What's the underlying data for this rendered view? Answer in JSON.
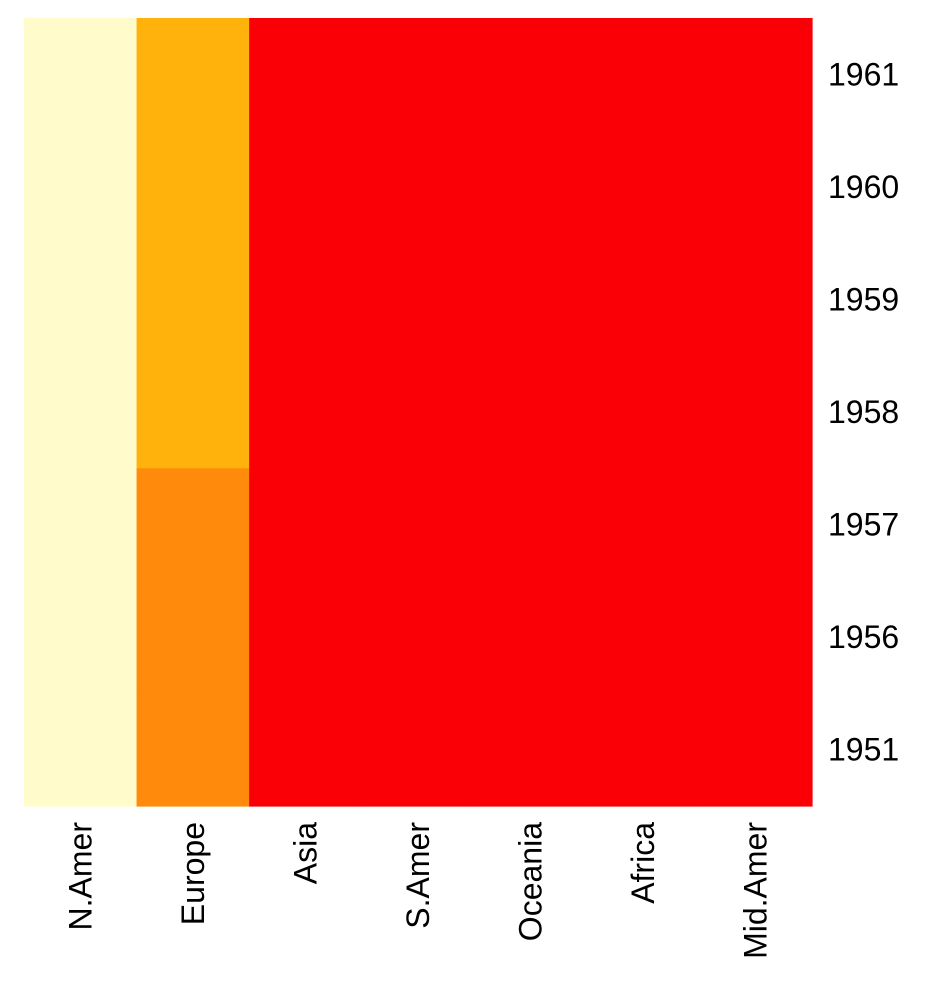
{
  "chart_data": {
    "type": "heatmap",
    "title": "",
    "xlabel": "",
    "ylabel": "",
    "columns": [
      "N.Amer",
      "Europe",
      "Asia",
      "S.Amer",
      "Oceania",
      "Africa",
      "Mid.Amer"
    ],
    "rows": [
      "1961",
      "1960",
      "1959",
      "1958",
      "1957",
      "1956",
      "1951"
    ],
    "levels": [
      [
        4,
        3,
        1,
        1,
        1,
        1,
        1
      ],
      [
        4,
        3,
        1,
        1,
        1,
        1,
        1
      ],
      [
        4,
        3,
        1,
        1,
        1,
        1,
        1
      ],
      [
        4,
        3,
        1,
        1,
        1,
        1,
        1
      ],
      [
        4,
        2,
        1,
        1,
        1,
        1,
        1
      ],
      [
        4,
        2,
        1,
        1,
        1,
        1,
        1
      ],
      [
        4,
        2,
        1,
        1,
        1,
        1,
        1
      ]
    ],
    "level_colors": {
      "1": "#fa0006",
      "2": "#ff8a0b",
      "3": "#ffb20b",
      "4": "#fffbcb"
    },
    "colormap": "heat",
    "grid": false,
    "legend": "none"
  }
}
